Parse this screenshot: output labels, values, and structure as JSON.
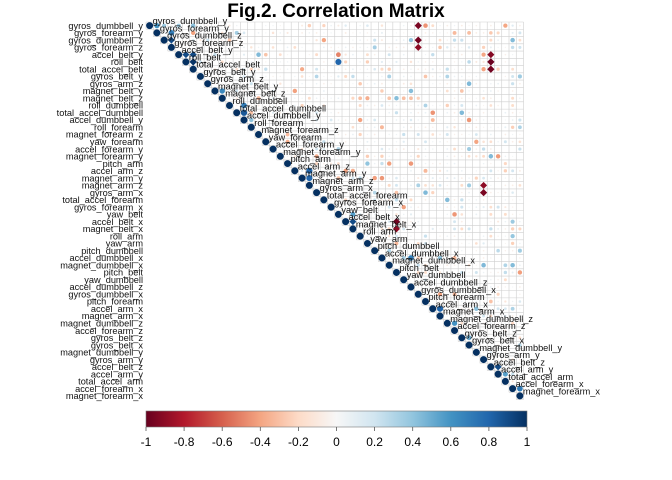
{
  "chart_data": {
    "type": "heatmap",
    "title": "Fig.2. Correlation Matrix",
    "layout": "upper-triangle",
    "cell_shape": "circle (size and color encode correlation)",
    "grid": true,
    "labels": [
      "gyros_dumbbell_y",
      "gyros_forearm_y",
      "gyros_dumbbell_z",
      "gyros_forearm_z",
      "accel_belt_y",
      "roll_belt",
      "total_accel_belt",
      "gyros_belt_y",
      "gyros_arm_z",
      "magnet_belt_y",
      "magnet_belt_z",
      "roll_dumbbell",
      "total_accel_dumbbell",
      "accel_dumbbell_y",
      "roll_forearm",
      "magnet_forearm_z",
      "yaw_forearm",
      "accel_forearm_y",
      "magnet_forearm_y",
      "pitch_arm",
      "accel_arm_z",
      "magnet_arm_y",
      "magnet_arm_z",
      "gyros_arm_x",
      "total_accel_forearm",
      "gyros_forearm_x",
      "yaw_belt",
      "accel_belt_x",
      "magnet_belt_x",
      "roll_arm",
      "yaw_arm",
      "pitch_dumbbell",
      "accel_dumbbell_x",
      "magnet_dumbbell_x",
      "pitch_belt",
      "yaw_dumbbell",
      "accel_dumbbell_z",
      "gyros_dumbbell_x",
      "pitch_forearm",
      "accel_arm_x",
      "magnet_arm_x",
      "magnet_dumbbell_z",
      "accel_forearm_z",
      "gyros_belt_z",
      "gyros_belt_x",
      "magnet_dumbbell_y",
      "gyros_arm_y",
      "accel_belt_z",
      "accel_arm_y",
      "total_accel_arm",
      "accel_forearm_x",
      "magnet_forearm_x"
    ],
    "strong_correlations": [
      {
        "a": "gyros_dumbbell_y",
        "b": "gyros_forearm_y",
        "value": 0.6
      },
      {
        "a": "gyros_dumbbell_z",
        "b": "gyros_forearm_z",
        "value": 0.9
      },
      {
        "a": "gyros_forearm_y",
        "b": "gyros_forearm_z",
        "value": 0.7
      },
      {
        "a": "accel_belt_y",
        "b": "roll_belt",
        "value": 0.9
      },
      {
        "a": "accel_belt_y",
        "b": "total_accel_belt",
        "value": 0.9
      },
      {
        "a": "roll_belt",
        "b": "total_accel_belt",
        "value": 0.98
      },
      {
        "a": "magnet_belt_y",
        "b": "magnet_belt_z",
        "value": 0.65
      },
      {
        "a": "total_accel_dumbbell",
        "b": "accel_dumbbell_y",
        "value": 0.85
      },
      {
        "a": "roll_dumbbell",
        "b": "accel_dumbbell_y",
        "value": 0.7
      },
      {
        "a": "accel_arm_z",
        "b": "magnet_arm_z",
        "value": 0.8
      },
      {
        "a": "magnet_arm_y",
        "b": "magnet_arm_z",
        "value": 0.8
      },
      {
        "a": "accel_belt_y",
        "b": "yaw_belt",
        "value": -0.5
      },
      {
        "a": "roll_belt",
        "b": "yaw_belt",
        "value": 0.8
      },
      {
        "a": "yaw_belt",
        "b": "magnet_belt_x",
        "value": 0.55
      },
      {
        "a": "accel_belt_x",
        "b": "magnet_belt_x",
        "value": 0.9
      },
      {
        "a": "pitch_belt",
        "b": "accel_belt_x",
        "value": -0.97
      },
      {
        "a": "pitch_belt",
        "b": "magnet_belt_x",
        "value": -0.9
      },
      {
        "a": "accel_dumbbell_x",
        "b": "accel_dumbbell_z",
        "value": 0.7
      },
      {
        "a": "gyros_dumbbell_y",
        "b": "gyros_dumbbell_x",
        "value": -0.95
      },
      {
        "a": "gyros_dumbbell_x",
        "b": "gyros_dumbbell_z",
        "value": -0.97
      },
      {
        "a": "gyros_dumbbell_x",
        "b": "gyros_forearm_z",
        "value": -0.9
      },
      {
        "a": "accel_arm_x",
        "b": "magnet_arm_x",
        "value": 0.8
      },
      {
        "a": "magnet_dumbbell_z",
        "b": "accel_forearm_z",
        "value": 0.6
      },
      {
        "a": "gyros_belt_z",
        "b": "gyros_belt_x",
        "value": 0.5
      },
      {
        "a": "magnet_arm_z",
        "b": "gyros_arm_y",
        "value": -0.9
      },
      {
        "a": "gyros_arm_x",
        "b": "gyros_arm_y",
        "value": -0.95
      },
      {
        "a": "accel_belt_z",
        "b": "roll_belt",
        "value": -0.99
      },
      {
        "a": "accel_belt_z",
        "b": "total_accel_belt",
        "value": -0.97
      },
      {
        "a": "accel_belt_z",
        "b": "accel_belt_y",
        "value": -0.92
      },
      {
        "a": "accel_arm_y",
        "b": "accel_belt_z",
        "value": 0.9
      },
      {
        "a": "total_accel_arm",
        "b": "accel_arm_y",
        "value": 0.55
      },
      {
        "a": "accel_forearm_x",
        "b": "magnet_forearm_x",
        "value": 0.7
      }
    ],
    "colorbar": {
      "colors": [
        "#67001f",
        "#b2182b",
        "#d6604d",
        "#f4a582",
        "#fddbc7",
        "#f7f7f7",
        "#d1e5f0",
        "#92c5de",
        "#4393c3",
        "#2166ac",
        "#053061"
      ],
      "ticks": [
        "-1",
        "-0.8",
        "-0.6",
        "-0.4",
        "-0.2",
        "0",
        "0.2",
        "0.4",
        "0.6",
        "0.8",
        "1"
      ],
      "range": [
        -1,
        1
      ]
    }
  }
}
